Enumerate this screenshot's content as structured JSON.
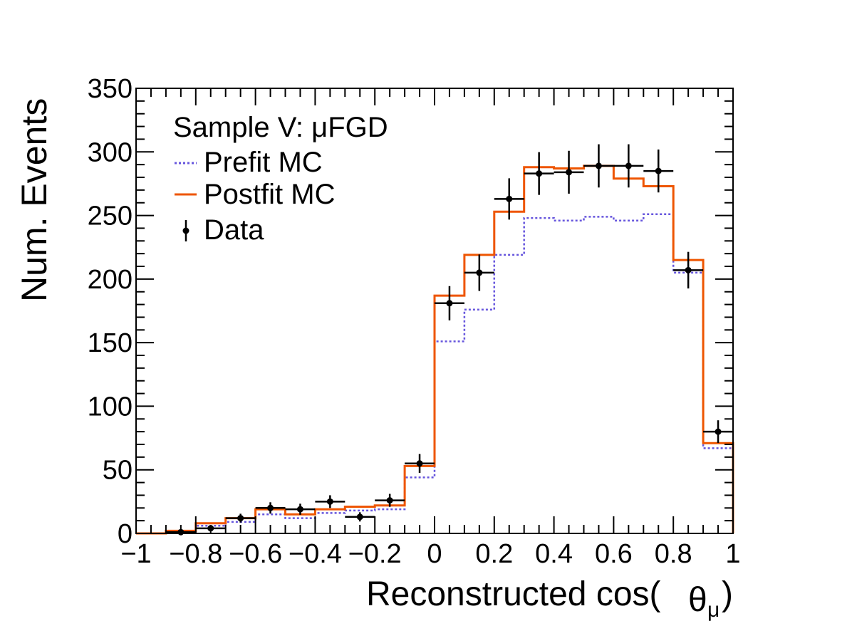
{
  "chart_data": {
    "type": "histogram",
    "xlabel_main": "Reconstructed cos(",
    "xlabel_theta": "θ",
    "xlabel_sub": "μ",
    "xlabel_close": ")",
    "ylabel": "Num. Events",
    "xlim": [
      -1,
      1
    ],
    "ylim": [
      0,
      350
    ],
    "xticks": [
      -1,
      -0.8,
      -0.6,
      -0.4,
      -0.2,
      0,
      0.2,
      0.4,
      0.6,
      0.8,
      1
    ],
    "xtick_labels": [
      "−1",
      "−0.8",
      "−0.6",
      "−0.4",
      "−0.2",
      "0",
      "0.2",
      "0.4",
      "0.6",
      "0.8",
      "1"
    ],
    "yticks": [
      0,
      50,
      100,
      150,
      200,
      250,
      300,
      350
    ],
    "ytick_labels": [
      "0",
      "50",
      "100",
      "150",
      "200",
      "250",
      "300",
      "350"
    ],
    "bin_edges": [
      -1,
      -0.9,
      -0.8,
      -0.7,
      -0.6,
      -0.5,
      -0.4,
      -0.3,
      -0.2,
      -0.1,
      0,
      0.1,
      0.2,
      0.3,
      0.4,
      0.5,
      0.6,
      0.7,
      0.8,
      0.9,
      1
    ],
    "legend": {
      "title": "Sample V: μFGD",
      "entries": [
        "Prefit MC",
        "Postfit MC",
        "Data"
      ]
    },
    "series": [
      {
        "name": "Prefit MC",
        "color": "#6655dd",
        "style": "dotted",
        "values": [
          0,
          1,
          6,
          9,
          15,
          12,
          16,
          18,
          19,
          44,
          151,
          176,
          219,
          248,
          246,
          249,
          246,
          251,
          205,
          67
        ]
      },
      {
        "name": "Postfit MC",
        "color": "#ee5500",
        "style": "solid",
        "values": [
          0,
          2,
          8,
          12,
          19,
          15,
          19,
          21,
          22,
          53,
          187,
          219,
          253,
          288,
          287,
          289,
          279,
          273,
          215,
          71
        ]
      }
    ],
    "data_points": {
      "name": "Data",
      "color": "#000000",
      "x": [
        -0.85,
        -0.75,
        -0.65,
        -0.55,
        -0.45,
        -0.35,
        -0.25,
        -0.15,
        -0.05,
        0.05,
        0.15,
        0.25,
        0.35,
        0.45,
        0.55,
        0.65,
        0.75,
        0.85,
        0.95
      ],
      "y": [
        1,
        4,
        12,
        20,
        19,
        25,
        13,
        26,
        55,
        181,
        205,
        263,
        283,
        284,
        289,
        289,
        285,
        207,
        80
      ]
    }
  }
}
